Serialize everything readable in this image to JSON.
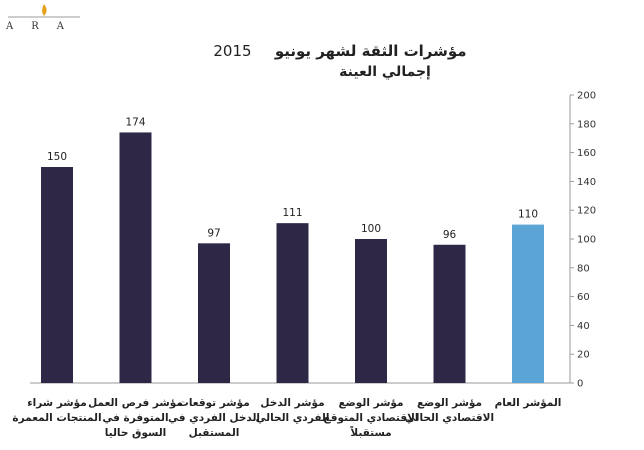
{
  "brand": {
    "logo_text": "ARA"
  },
  "chart_data": {
    "type": "bar",
    "title": "مؤشرات الثقة لشهر يونيو",
    "title_year": "2015",
    "subtitle": "إجمالي العينة",
    "categories": [
      "مؤشر شراء المنتجات المعمرة",
      "مؤشر فرص العمل المتوفرة في السوق حاليا",
      "مؤشر توقعات الدخل الفردي في المستقبل",
      "مؤشر الدخل الفردي الحالي",
      "مؤشر الوضع الاقتصادي المتوقع مستقبلاً",
      "مؤشر الوضع الاقتصادي الحالي",
      "المؤشر العام"
    ],
    "values": [
      150,
      174,
      97,
      111,
      100,
      96,
      110
    ],
    "colors": [
      "#2e2846",
      "#2e2846",
      "#2e2846",
      "#2e2846",
      "#2e2846",
      "#2e2846",
      "#5ba4d6"
    ],
    "ylim": [
      0,
      200
    ],
    "yticks": [
      0,
      20,
      40,
      60,
      80,
      100,
      120,
      140,
      160,
      180,
      200
    ],
    "axis_position": "right",
    "grid": false
  }
}
